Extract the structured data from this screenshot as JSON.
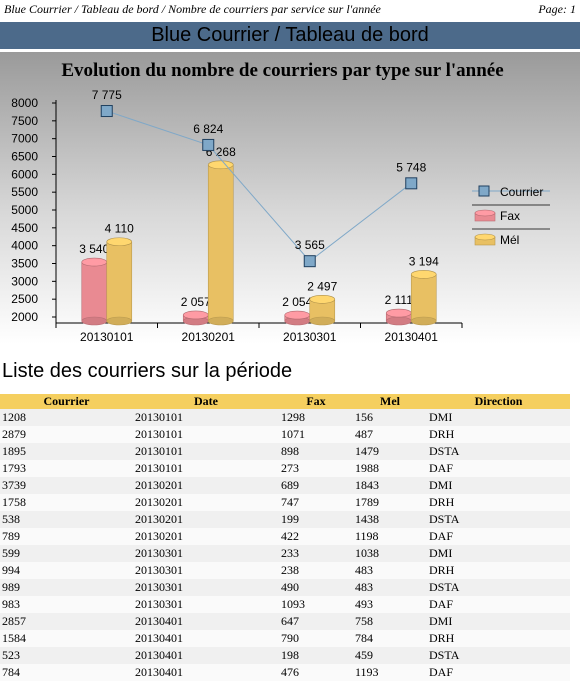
{
  "header": {
    "breadcrumb": "Blue Courrier / Tableau de bord / Nombre de courriers par service sur l'année",
    "page": "Page: 1"
  },
  "banner": {
    "title": "Blue Courrier / Tableau de bord"
  },
  "chart_data": {
    "type": "bar",
    "title": "Evolution du nombre de courriers par type sur l'année",
    "categories": [
      "20130101",
      "20130201",
      "20130301",
      "20130401"
    ],
    "ylim": [
      2000,
      8000
    ],
    "yticks": [
      2000,
      2500,
      3000,
      3500,
      4000,
      4500,
      5000,
      5500,
      6000,
      6500,
      7000,
      7500,
      8000
    ],
    "legend_position": "right",
    "series": [
      {
        "name": "Fax",
        "kind": "cylinder",
        "color": "#e98a92",
        "values": [
          3540,
          2057,
          2054,
          2111
        ],
        "labels": [
          "3 540",
          "2 057",
          "2 054",
          "2 111"
        ]
      },
      {
        "name": "Mél",
        "kind": "cylinder",
        "color": "#e8c063",
        "values": [
          4110,
          6268,
          2497,
          3194
        ],
        "labels": [
          "4 110",
          "6 268",
          "2 497",
          "3 194"
        ]
      },
      {
        "name": "Courrier",
        "kind": "line",
        "color": "#7fa8c8",
        "values": [
          7775,
          6824,
          3565,
          5748
        ],
        "labels": [
          "7 775",
          "6 824",
          "3 565",
          "5 748"
        ]
      }
    ]
  },
  "section": {
    "title": "Liste des courriers sur la période"
  },
  "table": {
    "columns": [
      "Courrier",
      "Date",
      "Fax",
      "Mel",
      "Direction"
    ],
    "rows": [
      [
        "1208",
        "20130101",
        "1298",
        "156",
        "DMI"
      ],
      [
        "2879",
        "20130101",
        "1071",
        "487",
        "DRH"
      ],
      [
        "1895",
        "20130101",
        "898",
        "1479",
        "DSTA"
      ],
      [
        "1793",
        "20130101",
        "273",
        "1988",
        "DAF"
      ],
      [
        "3739",
        "20130201",
        "689",
        "1843",
        "DMI"
      ],
      [
        "1758",
        "20130201",
        "747",
        "1789",
        "DRH"
      ],
      [
        "538",
        "20130201",
        "199",
        "1438",
        "DSTA"
      ],
      [
        "789",
        "20130201",
        "422",
        "1198",
        "DAF"
      ],
      [
        "599",
        "20130301",
        "233",
        "1038",
        "DMI"
      ],
      [
        "994",
        "20130301",
        "238",
        "483",
        "DRH"
      ],
      [
        "989",
        "20130301",
        "490",
        "483",
        "DSTA"
      ],
      [
        "983",
        "20130301",
        "1093",
        "493",
        "DAF"
      ],
      [
        "2857",
        "20130401",
        "647",
        "758",
        "DMI"
      ],
      [
        "1584",
        "20130401",
        "790",
        "784",
        "DRH"
      ],
      [
        "523",
        "20130401",
        "198",
        "459",
        "DSTA"
      ],
      [
        "784",
        "20130401",
        "476",
        "1193",
        "DAF"
      ]
    ]
  }
}
